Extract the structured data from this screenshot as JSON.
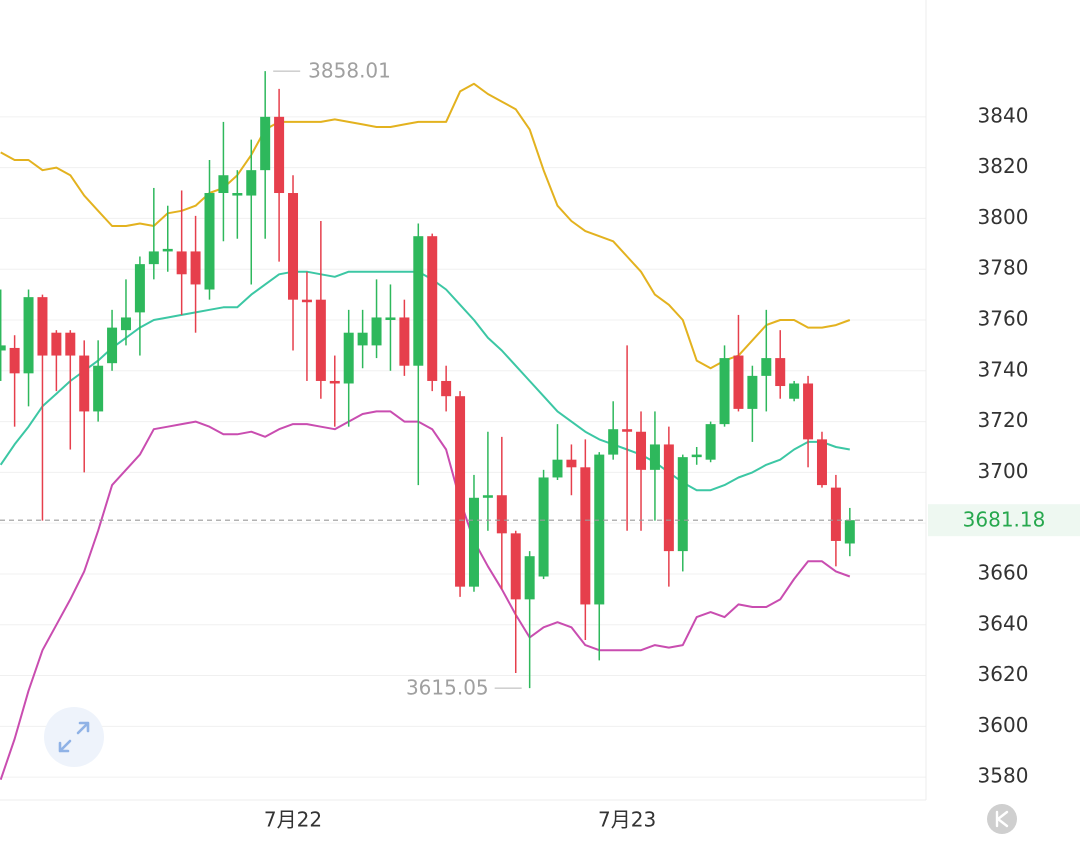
{
  "chart_data": {
    "type": "candlestick",
    "categories": [
      null,
      null,
      null,
      null,
      null,
      null,
      null,
      null,
      null,
      null,
      null,
      null,
      null,
      null,
      null,
      null,
      null,
      null,
      null,
      null,
      null,
      "7月22",
      null,
      null,
      null,
      null,
      null,
      null,
      null,
      null,
      null,
      null,
      null,
      null,
      null,
      null,
      null,
      null,
      null,
      null,
      null,
      null,
      null,
      null,
      null,
      "7月23",
      null,
      null,
      null,
      null,
      null,
      null,
      null,
      null,
      null,
      null,
      null,
      null,
      null,
      null,
      null,
      null
    ],
    "open": [
      3748,
      3749,
      3739,
      3769,
      3755,
      3755,
      3746,
      3724,
      3743,
      3756,
      3763,
      3782,
      3787,
      3787,
      3787,
      3772,
      3810,
      3809,
      3809,
      3819,
      3840,
      3810,
      3768,
      3768,
      3736,
      3735,
      3750,
      3750,
      3760,
      3761,
      3742,
      3793,
      3736,
      3730,
      3655,
      3690,
      3691,
      3676,
      3650,
      3659,
      3698,
      3705,
      3702,
      3648,
      3707,
      3717,
      3716,
      3701,
      3711,
      3669,
      3706,
      3705,
      3719,
      3746,
      3725,
      3738,
      3745,
      3729,
      3735,
      3713,
      3694,
      3672
    ],
    "high": [
      3772,
      3754,
      3772,
      3770,
      3756,
      3756,
      3752,
      3752,
      3764,
      3776,
      3785,
      3812,
      3805,
      3811,
      3801,
      3823,
      3838,
      3819,
      3831,
      3858.01,
      3851,
      3817,
      3779,
      3799,
      3746,
      3764,
      3764,
      3776,
      3774,
      3768,
      3798,
      3794,
      3742,
      3732,
      3699,
      3716,
      3714,
      3677,
      3669,
      3701,
      3719,
      3711,
      3713,
      3708,
      3728,
      3750,
      3724,
      3724,
      3718,
      3707,
      3710,
      3720,
      3750,
      3762,
      3742,
      3764,
      3756,
      3736,
      3738,
      3716,
      3699,
      3686
    ],
    "low": [
      3736,
      3718,
      3726,
      3681,
      3732,
      3709,
      3700,
      3720,
      3740,
      3750,
      3746,
      3776,
      3779,
      3762,
      3755,
      3768,
      3791,
      3792,
      3774,
      3792,
      3783,
      3748,
      3736,
      3729,
      3718,
      3718,
      3741,
      3745,
      3740,
      3738,
      3695,
      3732,
      3724,
      3651,
      3653,
      3677,
      3654,
      3621,
      3615.05,
      3658,
      3697,
      3691,
      3634,
      3626,
      3705,
      3677,
      3677,
      3681,
      3655,
      3661,
      3703,
      3704,
      3718,
      3724,
      3712,
      3724,
      3729,
      3728,
      3702,
      3694,
      3663,
      3667
    ],
    "close": [
      3750,
      3739,
      3769,
      3746,
      3746,
      3746,
      3724,
      3742,
      3757,
      3761,
      3782,
      3787,
      3788,
      3778,
      3774,
      3810,
      3817,
      3810,
      3819,
      3840,
      3810,
      3768,
      3767,
      3736,
      3735,
      3755,
      3755,
      3761,
      3761,
      3742,
      3793,
      3736,
      3730,
      3655,
      3690,
      3691,
      3676,
      3650,
      3667,
      3698,
      3705,
      3702,
      3648,
      3707,
      3717,
      3716,
      3701,
      3711,
      3669,
      3706,
      3707,
      3719,
      3745,
      3725,
      3738,
      3745,
      3734,
      3735,
      3713,
      3695,
      3673,
      3681.18
    ],
    "up_color": "#2eb85c",
    "down_color": "#e63f4c",
    "overlays": [
      {
        "color": "#e3b21f",
        "values": [
          3826,
          3823,
          3823,
          3819,
          3820,
          3817,
          3809,
          3803,
          3797,
          3797,
          3798,
          3797,
          3802,
          3803,
          3805,
          3810,
          3812,
          3817,
          3825,
          3835,
          3838,
          3838,
          3838,
          3838,
          3839,
          3838,
          3837,
          3836,
          3836,
          3837,
          3838,
          3838,
          3838,
          3850,
          3853,
          3849,
          3846,
          3843,
          3835,
          3819,
          3805,
          3799,
          3795,
          3793,
          3791,
          3785,
          3779,
          3770,
          3766,
          3760,
          3744,
          3741,
          3744,
          3746,
          3752,
          3758,
          3760,
          3760,
          3757,
          3757,
          3758,
          3760
        ]
      },
      {
        "color": "#3cc7a4",
        "values": [
          3703,
          3711,
          3718,
          3726,
          3731,
          3736,
          3740,
          3744,
          3749,
          3753,
          3757,
          3760,
          3761,
          3762,
          3763,
          3764,
          3765,
          3765,
          3770,
          3774,
          3778,
          3779,
          3779,
          3778,
          3777,
          3779,
          3779,
          3779,
          3779,
          3779,
          3779,
          3776,
          3772,
          3766,
          3760,
          3753,
          3748,
          3742,
          3736,
          3730,
          3724,
          3720,
          3716,
          3713,
          3711,
          3709,
          3707,
          3704,
          3700,
          3696,
          3693,
          3693,
          3695,
          3698,
          3700,
          3703,
          3705,
          3709,
          3712,
          3712,
          3710,
          3709
        ]
      },
      {
        "color": "#c94db0",
        "values": [
          3579,
          3595,
          3614,
          3630,
          3640,
          3650,
          3661,
          3677,
          3695,
          3701,
          3707,
          3717,
          3718,
          3719,
          3720,
          3718,
          3715,
          3715,
          3716,
          3714,
          3717,
          3719,
          3719,
          3718,
          3717,
          3720,
          3723,
          3724,
          3724,
          3720,
          3720,
          3717,
          3709,
          3689,
          3673,
          3663,
          3654,
          3644,
          3635,
          3639,
          3641,
          3639,
          3632,
          3630,
          3630,
          3630,
          3630,
          3632,
          3631,
          3632,
          3643,
          3645,
          3643,
          3648,
          3647,
          3647,
          3650,
          3658,
          3665,
          3665,
          3661,
          3659
        ]
      }
    ],
    "ylim": [
      3571,
      3886
    ],
    "yticks": [
      3580,
      3600,
      3620,
      3640,
      3660,
      3680,
      3700,
      3720,
      3740,
      3760,
      3780,
      3800,
      3820,
      3840
    ],
    "grid": true
  }
}
